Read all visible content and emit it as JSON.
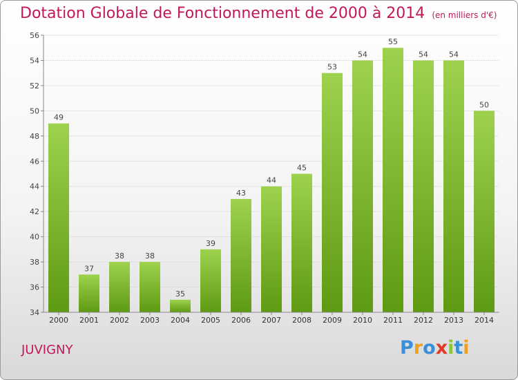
{
  "title": "Dotation Globale de Fonctionnement de 2000 à 2014",
  "subtitle": "(en milliers d'€)",
  "commune": "JUVIGNY",
  "logo": {
    "letters": [
      "P",
      "r",
      "o",
      "x",
      "i",
      "t",
      "i"
    ],
    "colors": [
      "#3a8fd8",
      "#f0a020",
      "#3a8fd8",
      "#e23a2a",
      "#8cc43a",
      "#3a8fd8",
      "#f0a020"
    ]
  },
  "colors": {
    "title": "#c0185a",
    "bar_top": "#9ed24e",
    "bar_bottom": "#5e9a12"
  },
  "chart_data": {
    "type": "bar",
    "categories": [
      "2000",
      "2001",
      "2002",
      "2003",
      "2004",
      "2005",
      "2006",
      "2007",
      "2008",
      "2009",
      "2010",
      "2011",
      "2012",
      "2013",
      "2014"
    ],
    "values": [
      49,
      37,
      38,
      38,
      35,
      39,
      43,
      44,
      45,
      53,
      54,
      55,
      54,
      54,
      50
    ],
    "ylim": [
      34,
      56
    ],
    "yticks": [
      34,
      36,
      38,
      40,
      42,
      44,
      46,
      48,
      50,
      52,
      54,
      56
    ],
    "grid": true,
    "data_labels": true
  }
}
